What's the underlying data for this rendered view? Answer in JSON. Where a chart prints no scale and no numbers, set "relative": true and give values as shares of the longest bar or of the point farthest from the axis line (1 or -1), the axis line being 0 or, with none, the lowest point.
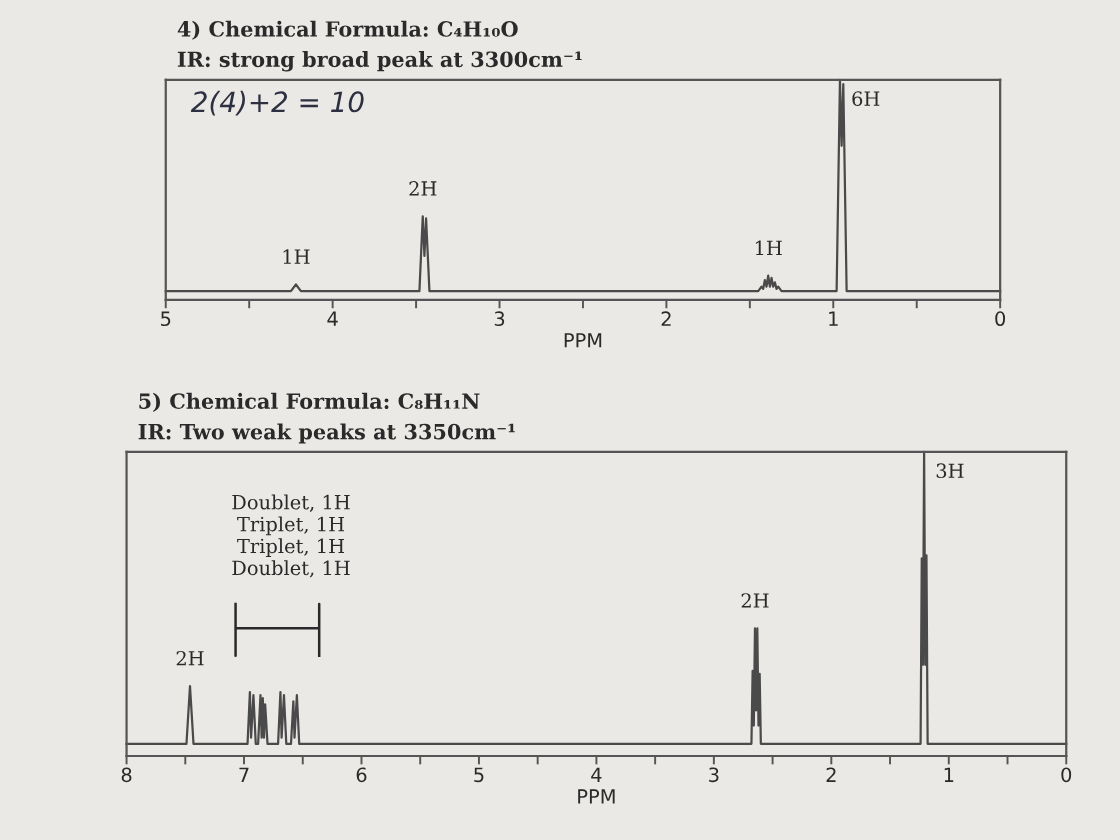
{
  "chart_data": [
    {
      "type": "line",
      "title": "4) Chemical Formula: C₄H₁₀O",
      "subtitle": "IR: strong broad peak at 3300cm⁻¹",
      "xlabel": "PPM",
      "relative": true,
      "xlim": [
        5,
        0
      ],
      "xticks": [
        5,
        {
          "value": 4.5,
          "label": null
        },
        4,
        {
          "value": 3.5,
          "label": null
        },
        3,
        {
          "value": 2.5,
          "label": null
        },
        2,
        {
          "value": 1.5,
          "label": null
        },
        1,
        {
          "value": 0.5,
          "label": null
        },
        0
      ],
      "series": [
        {
          "color": "#4a4a4a",
          "x": [
            5.0,
            4.25,
            4.22,
            4.19,
            3.48,
            3.46,
            3.45,
            3.44,
            3.42,
            1.45,
            1.43,
            1.42,
            1.41,
            1.4,
            1.39,
            1.38,
            1.37,
            1.36,
            1.35,
            1.34,
            1.33,
            1.31,
            0.98,
            0.96,
            0.95,
            0.94,
            0.92,
            0.0
          ],
          "values": [
            0.04,
            0.04,
            0.07,
            0.04,
            0.04,
            0.38,
            0.2,
            0.37,
            0.04,
            0.04,
            0.06,
            0.05,
            0.09,
            0.06,
            0.11,
            0.06,
            0.1,
            0.06,
            0.08,
            0.05,
            0.06,
            0.04,
            0.04,
            1.0,
            0.7,
            0.98,
            0.04,
            0.04
          ]
        }
      ],
      "annotations": [
        "2(4)+2 = 10",
        {
          "text": "1H",
          "x": 4.22,
          "y": 0.07
        },
        {
          "text": "2H",
          "x": 3.46,
          "y": 0.38
        },
        {
          "text": "1H",
          "x": 1.39,
          "y": 0.11
        },
        {
          "text": "6H",
          "x": 0.96,
          "y": 1.0
        }
      ]
    },
    {
      "type": "line",
      "title": "5) Chemical Formula: C₈H₁₁N",
      "subtitle": "IR: Two weak peaks at 3350cm⁻¹",
      "xlabel": "PPM",
      "relative": true,
      "xlim": [
        8,
        0
      ],
      "xticks": [
        8,
        {
          "value": 7.5,
          "label": null
        },
        7,
        {
          "value": 6.5,
          "label": null
        },
        6,
        {
          "value": 5.5,
          "label": null
        },
        5,
        {
          "value": 4.5,
          "label": null
        },
        4,
        {
          "value": 3.5,
          "label": null
        },
        3,
        {
          "value": 2.5,
          "label": null
        },
        2,
        {
          "value": 1.5,
          "label": null
        },
        1,
        {
          "value": 0.5,
          "label": null
        },
        0
      ],
      "series": [
        {
          "color": "#4a4a4a",
          "x": [
            8.0,
            7.49,
            7.46,
            7.43,
            6.97,
            6.95,
            6.94,
            6.92,
            6.9,
            6.88,
            6.86,
            6.85,
            6.84,
            6.83,
            6.82,
            6.8,
            6.71,
            6.69,
            6.68,
            6.66,
            6.64,
            6.6,
            6.58,
            6.57,
            6.55,
            6.53,
            2.68,
            2.67,
            2.66,
            2.65,
            2.64,
            2.63,
            2.62,
            2.61,
            2.6,
            1.24,
            1.23,
            1.22,
            1.21,
            1.2,
            1.19,
            1.18,
            0.0
          ],
          "values": [
            0.04,
            0.04,
            0.23,
            0.04,
            0.04,
            0.21,
            0.06,
            0.2,
            0.04,
            0.04,
            0.2,
            0.06,
            0.19,
            0.06,
            0.17,
            0.04,
            0.04,
            0.21,
            0.06,
            0.2,
            0.04,
            0.04,
            0.18,
            0.06,
            0.2,
            0.04,
            0.04,
            0.28,
            0.1,
            0.42,
            0.15,
            0.42,
            0.1,
            0.27,
            0.04,
            0.04,
            0.65,
            0.3,
            1.0,
            0.3,
            0.66,
            0.04,
            0.04
          ]
        }
      ],
      "annotations": [
        "Doublet, 1H",
        "Triplet, 1H",
        "Triplet, 1H",
        "Doublet, 1H",
        {
          "text": "2H",
          "x": 7.46,
          "y": 0.23
        },
        {
          "text": "2H",
          "x": 2.65,
          "y": 0.42
        },
        {
          "text": "3H",
          "x": 1.21,
          "y": 1.0
        }
      ]
    }
  ]
}
